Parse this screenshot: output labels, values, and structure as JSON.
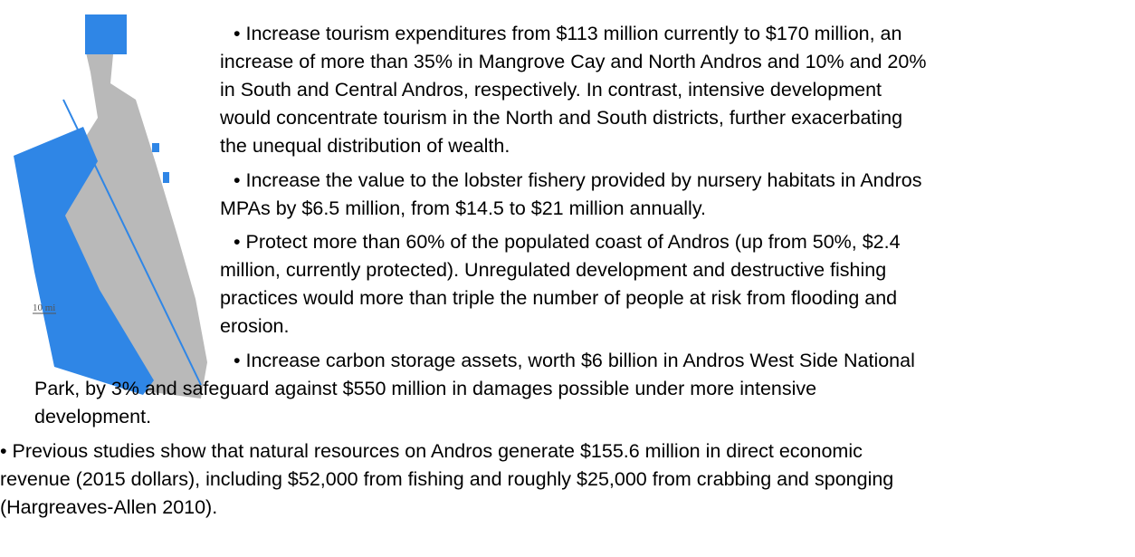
{
  "map": {
    "scale_label": "10 mi"
  },
  "bullets": [
    {
      "lines": [
        "•  Increase tourism expenditures from $113 million currently to $170 million, an",
        "increase of more than 35% in Mangrove Cay and North Andros and 10% and 20%",
        "in South and Central Andros, respectively.  In contrast, intensive development",
        "would concentrate tourism in the North and South districts, further exacerbating",
        "the unequal distribution of wealth."
      ]
    },
    {
      "lines": [
        "•  Increase the value to the lobster fishery provided by nursery habitats in Andros",
        "MPAs by $6.5 million, from $14.5 to $21 million annually."
      ]
    },
    {
      "lines": [
        "•  Protect more than 60% of the populated coast of Andros (up from 50%, $2.4",
        "million, currently protected). Unregulated development and destructive fishing",
        "practices would more than triple the number of people at risk from flooding and",
        "erosion."
      ]
    },
    {
      "lines": [
        "•  Increase carbon storage assets, worth $6 billion in Andros West Side National",
        "Park, by 3% and safeguard against $550 million in damages possible under more intensive",
        "development."
      ]
    },
    {
      "lines": [
        "•    Previous studies show that natural resources on Andros generate $155.6 million in direct economic",
        "revenue (2015 dollars), including $52,000 from fishing and roughly $25,000 from crabbing and sponging",
        "(Hargreaves-Allen 2010)."
      ]
    }
  ]
}
